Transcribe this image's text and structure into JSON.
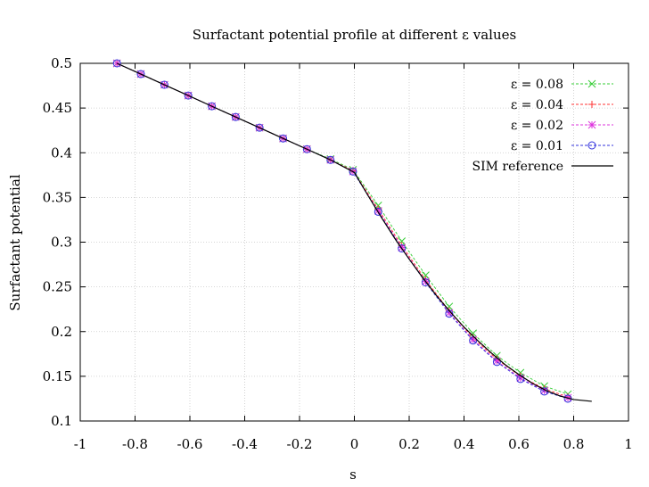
{
  "chart_data": {
    "type": "line",
    "title": "Surfactant potential profile at different ε values",
    "xlabel": "s",
    "ylabel": "Surfactant potential",
    "xlim": [
      -1,
      1
    ],
    "ylim": [
      0.1,
      0.5
    ],
    "xticks": [
      -1,
      -0.8,
      -0.6,
      -0.4,
      -0.2,
      0,
      0.2,
      0.4,
      0.6,
      0.8,
      1
    ],
    "xtick_labels": [
      "-1",
      "-0.8",
      "-0.6",
      "-0.4",
      "-0.2",
      "0",
      "0.2",
      "0.4",
      "0.6",
      "0.8",
      "1"
    ],
    "yticks": [
      0.1,
      0.15,
      0.2,
      0.25,
      0.3,
      0.35,
      0.4,
      0.45,
      0.5
    ],
    "ytick_labels": [
      "0.1",
      "0.15",
      "0.2",
      "0.25",
      "0.3",
      "0.35",
      "0.4",
      "0.45",
      "0.5"
    ],
    "grid": true,
    "legend_position": "top-right",
    "x": [
      -0.866,
      -0.779,
      -0.693,
      -0.606,
      -0.52,
      -0.433,
      -0.346,
      -0.26,
      -0.173,
      -0.087,
      -0.005,
      0.087,
      0.173,
      0.26,
      0.346,
      0.433,
      0.52,
      0.606,
      0.693,
      0.779
    ],
    "series": [
      {
        "name": "ε = 0.08",
        "color": "#33cc33",
        "marker": "x",
        "values": [
          0.5,
          0.488,
          0.476,
          0.464,
          0.452,
          0.44,
          0.428,
          0.416,
          0.404,
          0.393,
          0.381,
          0.341,
          0.301,
          0.263,
          0.228,
          0.198,
          0.173,
          0.154,
          0.139,
          0.13
        ]
      },
      {
        "name": "ε = 0.04",
        "color": "#ff3333",
        "marker": "+",
        "values": [
          0.5,
          0.488,
          0.476,
          0.464,
          0.452,
          0.44,
          0.428,
          0.416,
          0.404,
          0.392,
          0.38,
          0.337,
          0.296,
          0.258,
          0.223,
          0.193,
          0.169,
          0.15,
          0.136,
          0.127
        ]
      },
      {
        "name": "ε = 0.02",
        "color": "#dd33dd",
        "marker": "star",
        "values": [
          0.5,
          0.488,
          0.476,
          0.464,
          0.452,
          0.44,
          0.428,
          0.416,
          0.404,
          0.392,
          0.379,
          0.335,
          0.294,
          0.256,
          0.221,
          0.191,
          0.167,
          0.148,
          0.134,
          0.126
        ]
      },
      {
        "name": "ε = 0.01",
        "color": "#3333dd",
        "marker": "circle",
        "values": [
          0.5,
          0.488,
          0.476,
          0.464,
          0.452,
          0.44,
          0.428,
          0.416,
          0.404,
          0.392,
          0.379,
          0.334,
          0.293,
          0.255,
          0.22,
          0.19,
          0.166,
          0.147,
          0.133,
          0.125
        ]
      },
      {
        "name": "SIM reference",
        "color": "#000000",
        "marker": "none",
        "x": [
          -0.866,
          -0.779,
          -0.693,
          -0.606,
          -0.52,
          -0.433,
          -0.346,
          -0.26,
          -0.173,
          -0.087,
          0,
          0.05,
          0.1,
          0.15,
          0.2,
          0.25,
          0.3,
          0.35,
          0.4,
          0.45,
          0.5,
          0.55,
          0.6,
          0.65,
          0.7,
          0.75,
          0.8,
          0.866
        ],
        "values": [
          0.5,
          0.488,
          0.476,
          0.464,
          0.452,
          0.44,
          0.428,
          0.416,
          0.404,
          0.392,
          0.378,
          0.352,
          0.327,
          0.303,
          0.281,
          0.26,
          0.24,
          0.222,
          0.205,
          0.19,
          0.176,
          0.163,
          0.152,
          0.142,
          0.134,
          0.128,
          0.124,
          0.122
        ]
      }
    ]
  }
}
